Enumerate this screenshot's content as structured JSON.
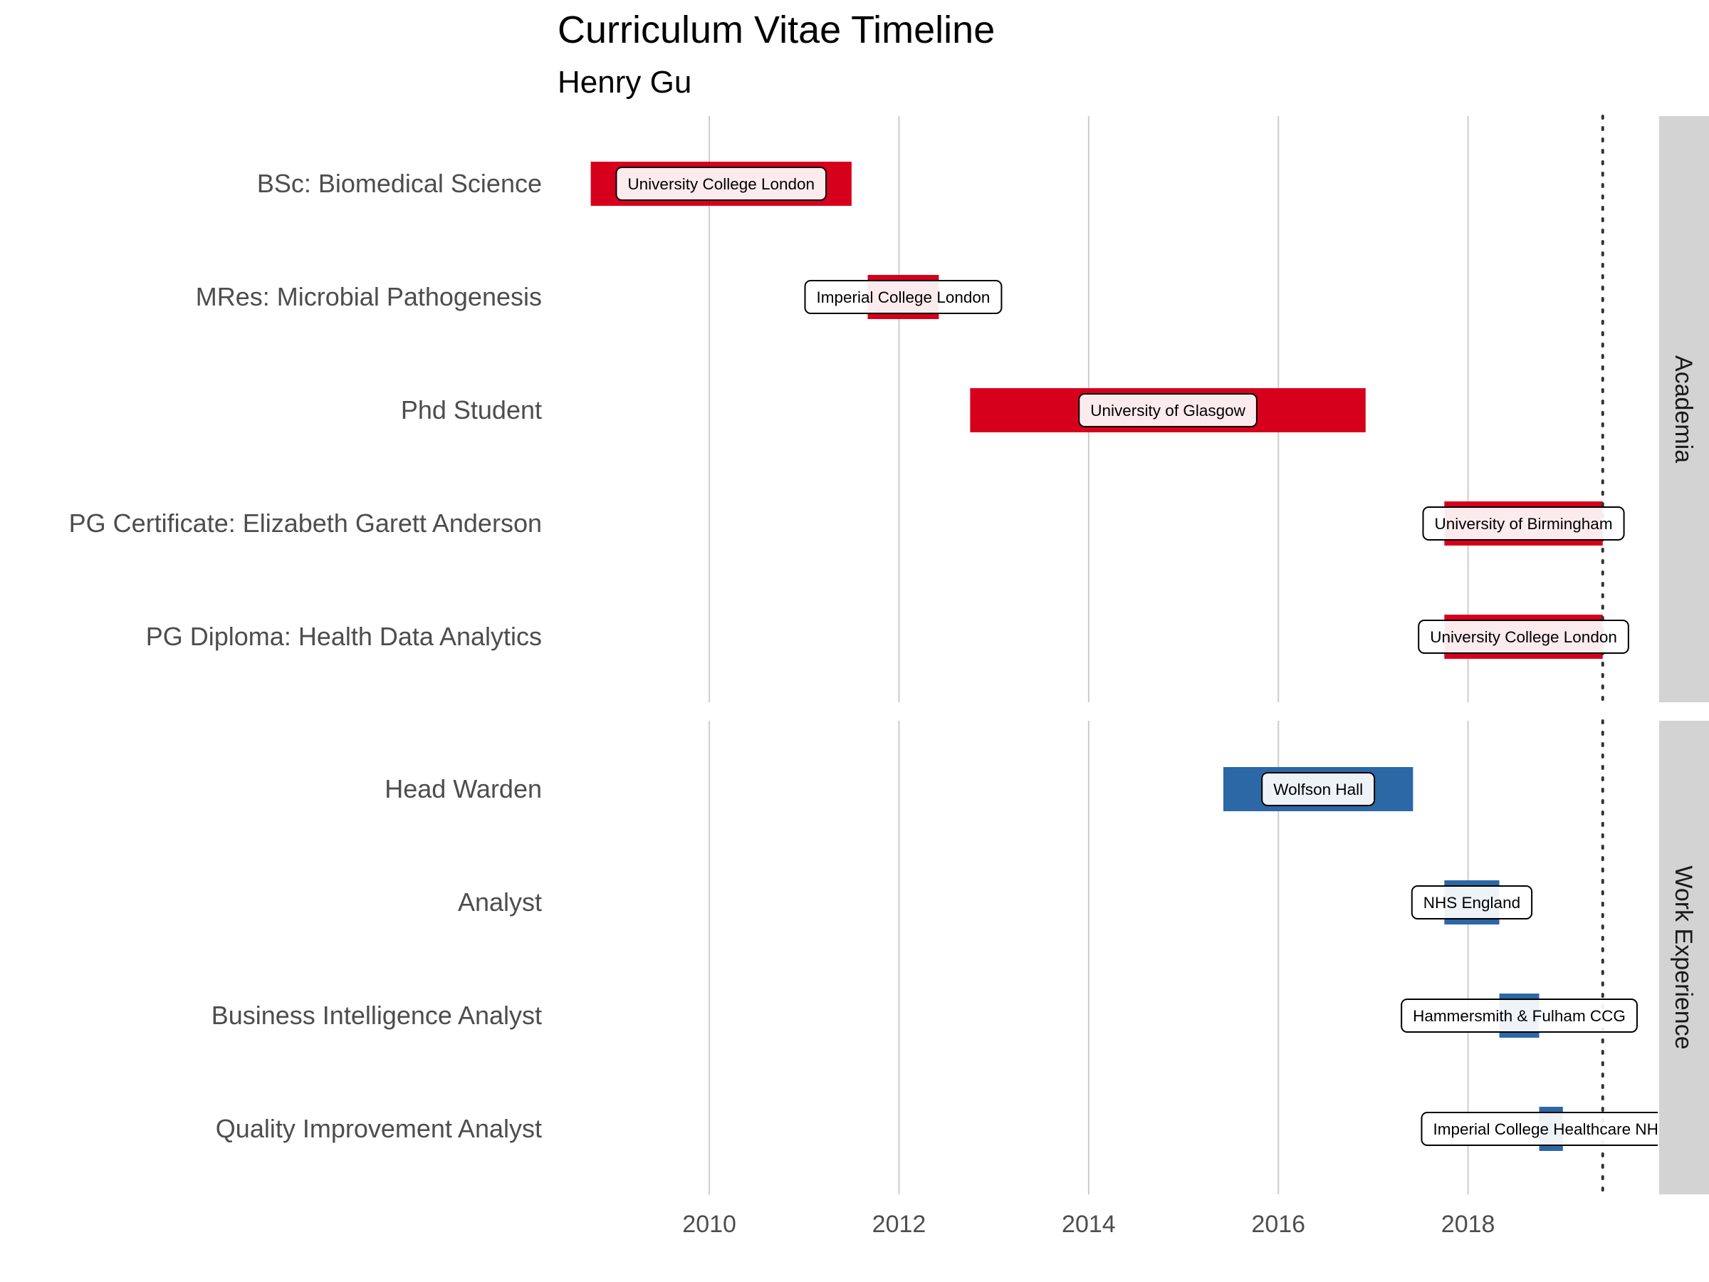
{
  "chart_data": {
    "type": "gantt",
    "title": "Curriculum Vitae Timeline",
    "subtitle": "Henry Gu",
    "x_ticks": [
      "2010",
      "2012",
      "2014",
      "2016",
      "2018"
    ],
    "xlim": [
      2008.4,
      2020.0
    ],
    "today_marker": 2019.42,
    "panels": [
      {
        "name": "Academia",
        "color": "#D7001C",
        "items": [
          {
            "role": "BSc: Biomedical Science",
            "org": "University College London",
            "start": 2008.75,
            "end": 2011.5
          },
          {
            "role": "MRes: Microbial Pathogenesis",
            "org": "Imperial College London",
            "start": 2011.67,
            "end": 2012.42
          },
          {
            "role": "Phd Student",
            "org": "University of Glasgow",
            "start": 2012.75,
            "end": 2016.92
          },
          {
            "role": "PG Certificate: Elizabeth Garett Anderson",
            "org": "University of Birmingham",
            "start": 2017.75,
            "end": 2019.42
          },
          {
            "role": "PG Diploma: Health Data Analytics",
            "org": "University College London",
            "start": 2017.75,
            "end": 2019.42
          }
        ]
      },
      {
        "name": "Work Experience",
        "color": "#2C67A6",
        "items": [
          {
            "role": "Head Warden",
            "org": "Wolfson Hall",
            "start": 2015.42,
            "end": 2017.42
          },
          {
            "role": "Analyst",
            "org": "NHS England",
            "start": 2017.75,
            "end": 2018.33
          },
          {
            "role": "Business Intelligence Analyst",
            "org": "Hammersmith & Fulham CCG",
            "start": 2018.33,
            "end": 2018.75
          },
          {
            "role": "Quality Improvement Analyst",
            "org": "Imperial College Healthcare NHS",
            "start": 2018.75,
            "end": 2019.0
          }
        ]
      }
    ]
  }
}
